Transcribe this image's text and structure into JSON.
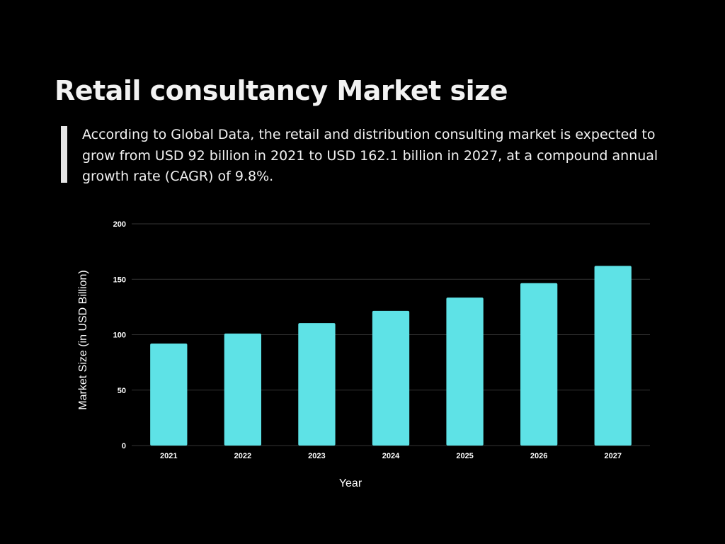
{
  "slide": {
    "title": "Retail consultancy Market size",
    "description": "According to Global Data, the retail and distribution consulting market is expected to grow from USD 92 billion in 2021 to USD 162.1 billion in 2027, at a compound annual growth rate (CAGR) of 9.8%."
  },
  "colors": {
    "background": "#000000",
    "bar": "#5ee2e6",
    "gridline": "#333333",
    "text": "#ffffff"
  },
  "chart_data": {
    "type": "bar",
    "title": "",
    "xlabel": "Year",
    "ylabel": "Market Size (in USD Billion)",
    "categories": [
      "2021",
      "2022",
      "2023",
      "2024",
      "2025",
      "2026",
      "2027"
    ],
    "values": [
      92,
      101,
      110.5,
      121.5,
      133.5,
      146.5,
      162.1
    ],
    "ylim": [
      0,
      200
    ],
    "yticks": [
      0,
      50,
      100,
      150,
      200
    ],
    "grid": true,
    "legend": "none"
  }
}
